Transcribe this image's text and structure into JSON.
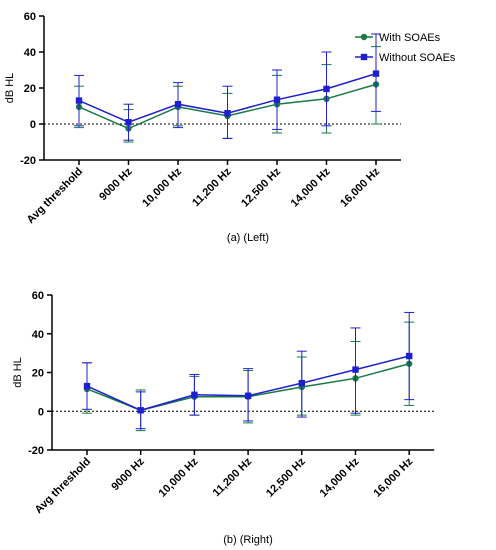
{
  "colors": {
    "with": "#1a7a4a",
    "without": "#1f1fd0"
  },
  "legend": {
    "with_label": "With SOAEs",
    "without_label": "Without SOAEs",
    "placement": "top-right"
  },
  "chart_data": [
    {
      "type": "line",
      "caption": "(a) (Left)",
      "ylabel": "dB HL",
      "ylim": [
        -20,
        60
      ],
      "yticks": [
        "60",
        "40",
        "20",
        "0",
        "-20"
      ],
      "categories": [
        "Avg threshold",
        "9000 Hz",
        "10,000 Hz",
        "11,200 Hz",
        "12,500 Hz",
        "14,000 Hz",
        "16,000 Hz"
      ],
      "reference_line_y": 0,
      "series": [
        {
          "name": "With SOAEs",
          "key": "with",
          "marker": "circle",
          "values": [
            9.5,
            -2.5,
            9.5,
            4.5,
            11,
            14,
            22
          ],
          "err_low": [
            -2,
            -10,
            -1,
            -8,
            -5,
            -5,
            0
          ],
          "err_high": [
            21,
            8,
            21,
            17,
            27,
            33,
            43
          ]
        },
        {
          "name": "Without SOAEs",
          "key": "without",
          "marker": "square",
          "values": [
            13,
            1,
            11,
            6,
            13.5,
            19.5,
            28
          ],
          "err_low": [
            -1,
            -9,
            -2,
            -8,
            -3,
            -1,
            7
          ],
          "err_high": [
            27,
            11,
            23,
            21,
            30,
            40,
            50
          ]
        }
      ]
    },
    {
      "type": "line",
      "caption": "(b) (Right)",
      "ylabel": "dB HL",
      "ylim": [
        -20,
        60
      ],
      "yticks": [
        "60",
        "40",
        "20",
        "0",
        "-20"
      ],
      "categories": [
        "Avg threshold",
        "9000 Hz",
        "10,000 Hz",
        "11,200 Hz",
        "12,500 Hz",
        "14,000 Hz",
        "16,000 Hz"
      ],
      "reference_line_y": 0,
      "series": [
        {
          "name": "With SOAEs",
          "key": "with",
          "marker": "circle",
          "values": [
            11.5,
            0.5,
            7.5,
            7.5,
            12.5,
            17,
            24.5
          ],
          "err_low": [
            -1,
            -10,
            -2,
            -6,
            -2,
            -2,
            3
          ],
          "err_high": [
            25,
            11,
            18,
            21,
            28,
            36,
            46
          ]
        },
        {
          "name": "Without SOAEs",
          "key": "without",
          "marker": "square",
          "values": [
            13,
            0.5,
            8.5,
            8,
            14.5,
            21.5,
            28.5
          ],
          "err_low": [
            1,
            -9,
            -2,
            -5,
            -3,
            -1,
            6
          ],
          "err_high": [
            25,
            10,
            19,
            22,
            31,
            43,
            51
          ]
        }
      ]
    }
  ]
}
